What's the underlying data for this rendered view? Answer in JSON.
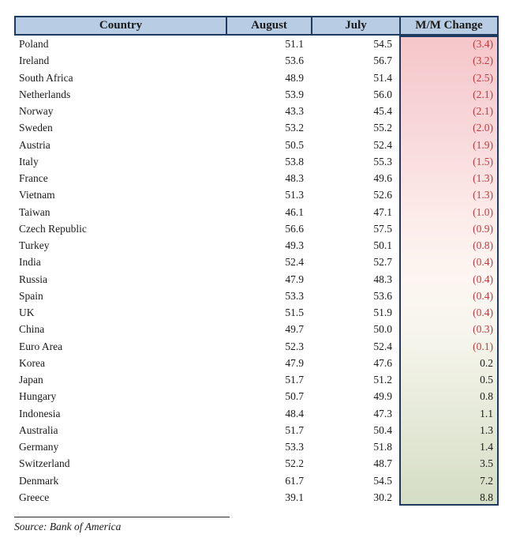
{
  "table": {
    "headers": [
      "Country",
      "August",
      "July",
      "M/M Change"
    ],
    "rows": [
      {
        "country": "Poland",
        "august": "51.1",
        "july": "54.5",
        "change": "(3.4)"
      },
      {
        "country": "Ireland",
        "august": "53.6",
        "july": "56.7",
        "change": "(3.2)"
      },
      {
        "country": "South Africa",
        "august": "48.9",
        "july": "51.4",
        "change": "(2.5)"
      },
      {
        "country": "Netherlands",
        "august": "53.9",
        "july": "56.0",
        "change": "(2.1)"
      },
      {
        "country": "Norway",
        "august": "43.3",
        "july": "45.4",
        "change": "(2.1)"
      },
      {
        "country": "Sweden",
        "august": "53.2",
        "july": "55.2",
        "change": "(2.0)"
      },
      {
        "country": "Austria",
        "august": "50.5",
        "july": "52.4",
        "change": "(1.9)"
      },
      {
        "country": "Italy",
        "august": "53.8",
        "july": "55.3",
        "change": "(1.5)"
      },
      {
        "country": "France",
        "august": "48.3",
        "july": "49.6",
        "change": "(1.3)"
      },
      {
        "country": "Vietnam",
        "august": "51.3",
        "july": "52.6",
        "change": "(1.3)"
      },
      {
        "country": "Taiwan",
        "august": "46.1",
        "july": "47.1",
        "change": "(1.0)"
      },
      {
        "country": "Czech Republic",
        "august": "56.6",
        "july": "57.5",
        "change": "(0.9)"
      },
      {
        "country": "Turkey",
        "august": "49.3",
        "july": "50.1",
        "change": "(0.8)"
      },
      {
        "country": "India",
        "august": "52.4",
        "july": "52.7",
        "change": "(0.4)"
      },
      {
        "country": "Russia",
        "august": "47.9",
        "july": "48.3",
        "change": "(0.4)"
      },
      {
        "country": "Spain",
        "august": "53.3",
        "july": "53.6",
        "change": "(0.4)"
      },
      {
        "country": "UK",
        "august": "51.5",
        "july": "51.9",
        "change": "(0.4)"
      },
      {
        "country": "China",
        "august": "49.7",
        "july": "50.0",
        "change": "(0.3)"
      },
      {
        "country": "Euro Area",
        "august": "52.3",
        "july": "52.4",
        "change": "(0.1)"
      },
      {
        "country": "Korea",
        "august": "47.9",
        "july": "47.6",
        "change": "0.2"
      },
      {
        "country": "Japan",
        "august": "51.7",
        "july": "51.2",
        "change": "0.5"
      },
      {
        "country": "Hungary",
        "august": "50.7",
        "july": "49.9",
        "change": "0.8"
      },
      {
        "country": "Indonesia",
        "august": "48.4",
        "july": "47.3",
        "change": "1.1"
      },
      {
        "country": "Australia",
        "august": "51.7",
        "july": "50.4",
        "change": "1.3"
      },
      {
        "country": "Germany",
        "august": "53.3",
        "july": "51.8",
        "change": "1.4"
      },
      {
        "country": "Switzerland",
        "august": "52.2",
        "july": "48.7",
        "change": "3.5"
      },
      {
        "country": "Denmark",
        "august": "61.7",
        "july": "54.5",
        "change": "7.2"
      },
      {
        "country": "Greece",
        "august": "39.1",
        "july": "30.2",
        "change": "8.8"
      }
    ]
  },
  "footer": {
    "source": "Source: Bank of America"
  },
  "colors": {
    "header_bg": "#b8cce4",
    "border": "#1f3a5f",
    "negative_text": "#c13a41",
    "gradient": [
      "#f5c6c9",
      "#f8d8da",
      "#fcebe9",
      "#fdf6f2",
      "#f6f5ec",
      "#e9ecdc",
      "#d4ddc5"
    ]
  },
  "chart_data": {
    "type": "table",
    "columns": [
      "Country",
      "August",
      "July",
      "M/M Change"
    ],
    "rows": [
      [
        "Poland",
        51.1,
        54.5,
        -3.4
      ],
      [
        "Ireland",
        53.6,
        56.7,
        -3.2
      ],
      [
        "South Africa",
        48.9,
        51.4,
        -2.5
      ],
      [
        "Netherlands",
        53.9,
        56.0,
        -2.1
      ],
      [
        "Norway",
        43.3,
        45.4,
        -2.1
      ],
      [
        "Sweden",
        53.2,
        55.2,
        -2.0
      ],
      [
        "Austria",
        50.5,
        52.4,
        -1.9
      ],
      [
        "Italy",
        53.8,
        55.3,
        -1.5
      ],
      [
        "France",
        48.3,
        49.6,
        -1.3
      ],
      [
        "Vietnam",
        51.3,
        52.6,
        -1.3
      ],
      [
        "Taiwan",
        46.1,
        47.1,
        -1.0
      ],
      [
        "Czech Republic",
        56.6,
        57.5,
        -0.9
      ],
      [
        "Turkey",
        49.3,
        50.1,
        -0.8
      ],
      [
        "India",
        52.4,
        52.7,
        -0.4
      ],
      [
        "Russia",
        47.9,
        48.3,
        -0.4
      ],
      [
        "Spain",
        53.3,
        53.6,
        -0.4
      ],
      [
        "UK",
        51.5,
        51.9,
        -0.4
      ],
      [
        "China",
        49.7,
        50.0,
        -0.3
      ],
      [
        "Euro Area",
        52.3,
        52.4,
        -0.1
      ],
      [
        "Korea",
        47.9,
        47.6,
        0.2
      ],
      [
        "Japan",
        51.7,
        51.2,
        0.5
      ],
      [
        "Hungary",
        50.7,
        49.9,
        0.8
      ],
      [
        "Indonesia",
        48.4,
        47.3,
        1.1
      ],
      [
        "Australia",
        51.7,
        50.4,
        1.3
      ],
      [
        "Germany",
        53.3,
        51.8,
        1.4
      ],
      [
        "Switzerland",
        52.2,
        48.7,
        3.5
      ],
      [
        "Denmark",
        61.7,
        54.5,
        7.2
      ],
      [
        "Greece",
        39.1,
        30.2,
        8.8
      ]
    ],
    "source": "Source: Bank of America",
    "layout_hints": "M/M Change column shaded with vertical gradient: red/pink for negative values (top) fading to white near zero, then green for positive values (bottom); negative values shown in red parentheses"
  }
}
